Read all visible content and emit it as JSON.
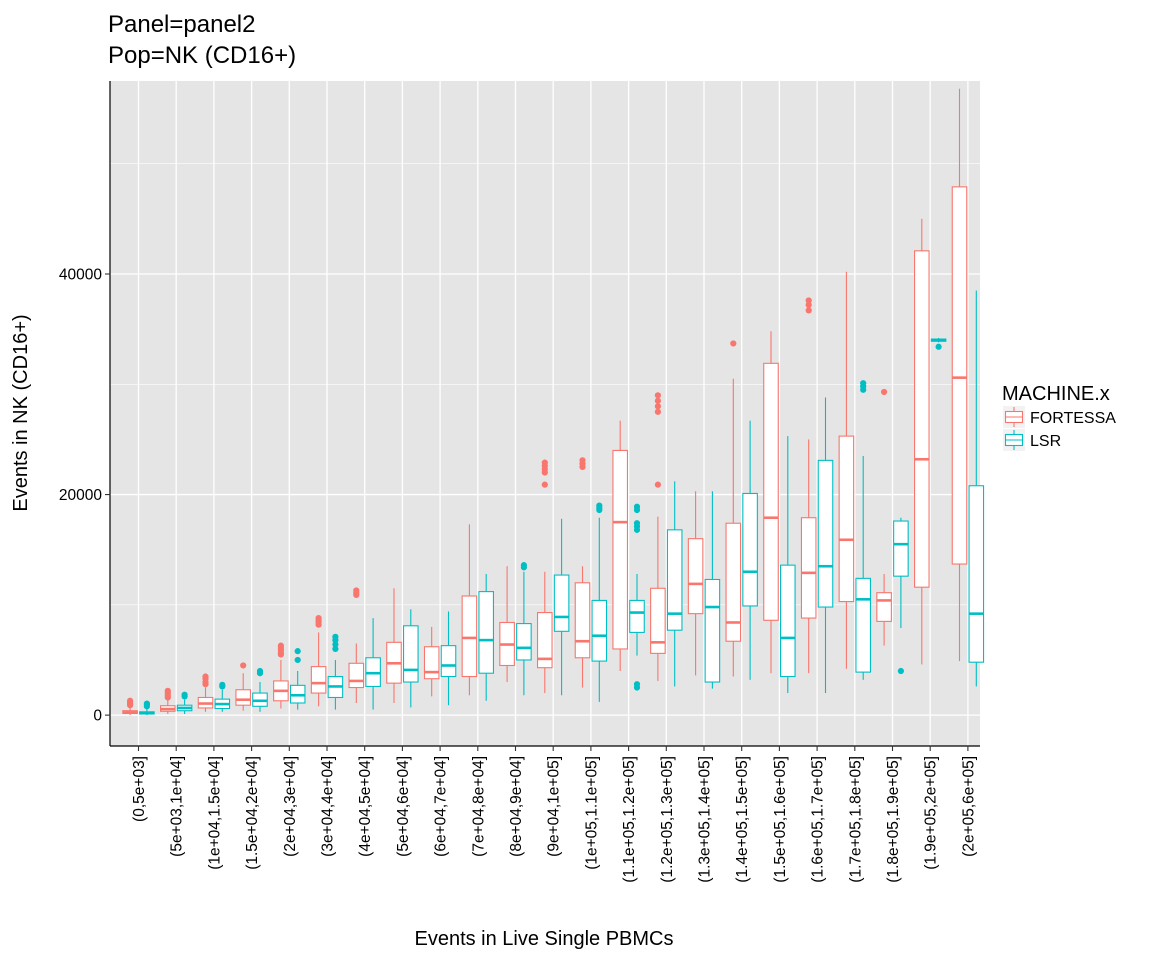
{
  "chart_data": {
    "type": "boxplot",
    "title": "Panel=panel2",
    "subtitle": "Pop=NK (CD16+)",
    "xlabel": "Events in Live Single PBMCs",
    "ylabel": "Events in NK (CD16+)",
    "ylim": [
      -2800,
      57500
    ],
    "yticks": [
      0,
      20000,
      40000
    ],
    "ytick_labels": [
      "0",
      "20000",
      "40000"
    ],
    "grid": true,
    "legend": {
      "title": "MACHINE.x",
      "position": "right"
    },
    "categories": [
      "(0,5e+03]",
      "(5e+03,1e+04]",
      "(1e+04,1.5e+04]",
      "(1.5e+04,2e+04]",
      "(2e+04,3e+04]",
      "(3e+04,4e+04]",
      "(4e+04,5e+04]",
      "(5e+04,6e+04]",
      "(6e+04,7e+04]",
      "(7e+04,8e+04]",
      "(8e+04,9e+04]",
      "(9e+04,1e+05]",
      "(1e+05,1.1e+05]",
      "(1.1e+05,1.2e+05]",
      "(1.2e+05,1.3e+05]",
      "(1.3e+05,1.4e+05]",
      "(1.4e+05,1.5e+05]",
      "(1.5e+05,1.6e+05]",
      "(1.6e+05,1.7e+05]",
      "(1.7e+05,1.8e+05]",
      "(1.8e+05,1.9e+05]",
      "(1.9e+05,2e+05]",
      "(2e+05,6e+05]"
    ],
    "series": [
      {
        "name": "FORTESSA",
        "color": "#F8766D",
        "boxes": [
          {
            "cat": 0,
            "min": 0,
            "q1": 150,
            "median": 250,
            "q3": 400,
            "max": 800,
            "outliers": [
              1000,
              1150,
              1300,
              900
            ]
          },
          {
            "cat": 1,
            "min": 100,
            "q1": 350,
            "median": 550,
            "q3": 850,
            "max": 1400,
            "outliers": [
              1600,
              1800,
              2000,
              2200
            ]
          },
          {
            "cat": 2,
            "min": 300,
            "q1": 650,
            "median": 1050,
            "q3": 1600,
            "max": 2500,
            "outliers": [
              2800,
              3000,
              3300,
              3500
            ]
          },
          {
            "cat": 3,
            "min": 400,
            "q1": 900,
            "median": 1400,
            "q3": 2300,
            "max": 3800,
            "outliers": [
              4500
            ]
          },
          {
            "cat": 4,
            "min": 600,
            "q1": 1300,
            "median": 2200,
            "q3": 3100,
            "max": 5000,
            "outliers": [
              5500,
              5700,
              5900,
              6100,
              6300
            ]
          },
          {
            "cat": 5,
            "min": 800,
            "q1": 2000,
            "median": 2900,
            "q3": 4400,
            "max": 7500,
            "outliers": [
              8200,
              8400,
              8600,
              8800
            ]
          },
          {
            "cat": 6,
            "min": 1100,
            "q1": 2500,
            "median": 3100,
            "q3": 4700,
            "max": 6500,
            "outliers": [
              10900,
              11100,
              11300
            ]
          },
          {
            "cat": 7,
            "min": 1100,
            "q1": 2900,
            "median": 4700,
            "q3": 6600,
            "max": 11500,
            "outliers": []
          },
          {
            "cat": 8,
            "min": 1700,
            "q1": 3300,
            "median": 3900,
            "q3": 6200,
            "max": 8000,
            "outliers": []
          },
          {
            "cat": 9,
            "min": 1800,
            "q1": 3500,
            "median": 7000,
            "q3": 10800,
            "max": 17300,
            "outliers": []
          },
          {
            "cat": 10,
            "min": 3000,
            "q1": 4500,
            "median": 6400,
            "q3": 8400,
            "max": 13500,
            "outliers": []
          },
          {
            "cat": 11,
            "min": 2000,
            "q1": 4300,
            "median": 5100,
            "q3": 9300,
            "max": 13000,
            "outliers": [
              20900,
              22000,
              22300,
              22600,
              22900
            ]
          },
          {
            "cat": 12,
            "min": 2500,
            "q1": 5200,
            "median": 6700,
            "q3": 12000,
            "max": 13500,
            "outliers": [
              22500,
              22800,
              23100
            ]
          },
          {
            "cat": 13,
            "min": 4000,
            "q1": 6000,
            "median": 17500,
            "q3": 24000,
            "max": 26700,
            "outliers": []
          },
          {
            "cat": 14,
            "min": 3100,
            "q1": 5600,
            "median": 6600,
            "q3": 11500,
            "max": 18000,
            "outliers": [
              20900,
              27500,
              28000,
              28500,
              29000
            ]
          },
          {
            "cat": 15,
            "min": 3600,
            "q1": 9200,
            "median": 11900,
            "q3": 16000,
            "max": 20300,
            "outliers": []
          },
          {
            "cat": 16,
            "min": 3500,
            "q1": 6700,
            "median": 8400,
            "q3": 17400,
            "max": 30500,
            "outliers": [
              33700
            ]
          },
          {
            "cat": 17,
            "min": 3800,
            "q1": 8600,
            "median": 17900,
            "q3": 31900,
            "max": 34800,
            "outliers": []
          },
          {
            "cat": 18,
            "min": 3800,
            "q1": 8800,
            "median": 12900,
            "q3": 17900,
            "max": 25000,
            "outliers": [
              36700,
              37200,
              37600
            ]
          },
          {
            "cat": 19,
            "min": 4200,
            "q1": 10300,
            "median": 15900,
            "q3": 25300,
            "max": 40200,
            "outliers": []
          },
          {
            "cat": 20,
            "min": 6300,
            "q1": 8500,
            "median": 10400,
            "q3": 11100,
            "max": 12800,
            "outliers": [
              29300
            ]
          },
          {
            "cat": 21,
            "min": 4600,
            "q1": 11600,
            "median": 23200,
            "q3": 42100,
            "max": 45000,
            "outliers": []
          },
          {
            "cat": 22,
            "min": 4900,
            "q1": 13700,
            "median": 30600,
            "q3": 47900,
            "max": 56800,
            "outliers": []
          }
        ]
      },
      {
        "name": "LSR",
        "color": "#00BFC4",
        "boxes": [
          {
            "cat": 0,
            "min": 0,
            "q1": 100,
            "median": 180,
            "q3": 300,
            "max": 600,
            "outliers": [
              800,
              950,
              1050
            ]
          },
          {
            "cat": 1,
            "min": 100,
            "q1": 400,
            "median": 650,
            "q3": 900,
            "max": 1400,
            "outliers": [
              1700,
              1850
            ]
          },
          {
            "cat": 2,
            "min": 300,
            "q1": 600,
            "median": 1000,
            "q3": 1450,
            "max": 2300,
            "outliers": [
              2600,
              2750
            ]
          },
          {
            "cat": 3,
            "min": 300,
            "q1": 800,
            "median": 1300,
            "q3": 2000,
            "max": 3000,
            "outliers": [
              3800,
              4000
            ]
          },
          {
            "cat": 4,
            "min": 500,
            "q1": 1100,
            "median": 1800,
            "q3": 2700,
            "max": 4000,
            "outliers": [
              5000,
              5800
            ]
          },
          {
            "cat": 5,
            "min": 500,
            "q1": 1600,
            "median": 2600,
            "q3": 3500,
            "max": 5000,
            "outliers": [
              6000,
              6400,
              6800,
              7100
            ]
          },
          {
            "cat": 6,
            "min": 500,
            "q1": 2600,
            "median": 3800,
            "q3": 5200,
            "max": 8800,
            "outliers": []
          },
          {
            "cat": 7,
            "min": 700,
            "q1": 3000,
            "median": 4100,
            "q3": 8100,
            "max": 9600,
            "outliers": []
          },
          {
            "cat": 8,
            "min": 900,
            "q1": 3500,
            "median": 4500,
            "q3": 6300,
            "max": 9400,
            "outliers": []
          },
          {
            "cat": 9,
            "min": 1300,
            "q1": 3800,
            "median": 6800,
            "q3": 11200,
            "max": 12800,
            "outliers": []
          },
          {
            "cat": 10,
            "min": 1800,
            "q1": 5000,
            "median": 6100,
            "q3": 8300,
            "max": 13000,
            "outliers": [
              13400,
              13600
            ]
          },
          {
            "cat": 11,
            "min": 1800,
            "q1": 7600,
            "median": 8900,
            "q3": 12700,
            "max": 17800,
            "outliers": []
          },
          {
            "cat": 12,
            "min": 1200,
            "q1": 4900,
            "median": 7200,
            "q3": 10400,
            "max": 17900,
            "outliers": [
              18600,
              18800,
              19000
            ]
          },
          {
            "cat": 13,
            "min": 5400,
            "q1": 7500,
            "median": 9300,
            "q3": 10400,
            "max": 12800,
            "outliers": [
              2500,
              2800,
              16800,
              17100,
              17400,
              18600,
              18900
            ]
          },
          {
            "cat": 14,
            "min": 2600,
            "q1": 7700,
            "median": 9200,
            "q3": 16800,
            "max": 21200,
            "outliers": []
          },
          {
            "cat": 15,
            "min": 2400,
            "q1": 3000,
            "median": 9800,
            "q3": 12300,
            "max": 20300,
            "outliers": []
          },
          {
            "cat": 16,
            "min": 3200,
            "q1": 9900,
            "median": 13000,
            "q3": 20100,
            "max": 26700,
            "outliers": []
          },
          {
            "cat": 17,
            "min": 2000,
            "q1": 3500,
            "median": 7000,
            "q3": 13600,
            "max": 25300,
            "outliers": []
          },
          {
            "cat": 18,
            "min": 2000,
            "q1": 9800,
            "median": 13500,
            "q3": 23100,
            "max": 28800,
            "outliers": []
          },
          {
            "cat": 19,
            "min": 3200,
            "q1": 3900,
            "median": 10500,
            "q3": 12400,
            "max": 23500,
            "outliers": [
              29500,
              29800,
              30100
            ]
          },
          {
            "cat": 20,
            "min": 7900,
            "q1": 12600,
            "median": 15500,
            "q3": 17600,
            "max": 17900,
            "outliers": [
              4000
            ]
          },
          {
            "cat": 21,
            "min": 33800,
            "q1": 33900,
            "median": 34000,
            "q3": 34100,
            "max": 34200,
            "outliers": [
              33400
            ]
          },
          {
            "cat": 22,
            "min": 2600,
            "q1": 4800,
            "median": 9200,
            "q3": 20800,
            "max": 38500,
            "outliers": []
          }
        ]
      }
    ]
  }
}
